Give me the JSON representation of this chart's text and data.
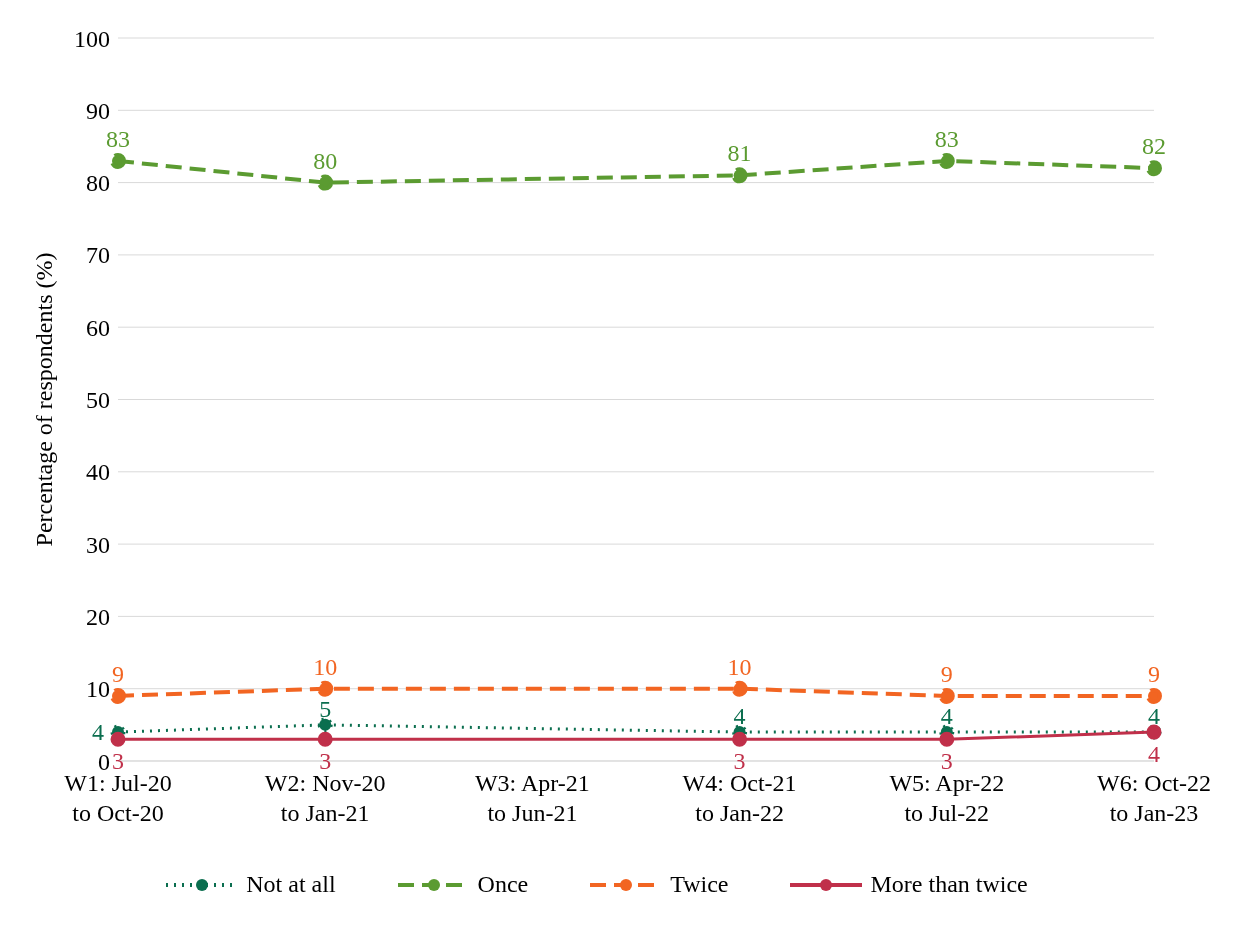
{
  "chart_data": {
    "type": "line",
    "ylabel": "Percentage of respondents (%)",
    "categories": [
      "W1: Jul-20 to Oct-20",
      "W2: Nov-20 to Jan-21",
      "W3: Apr-21 to Jun-21",
      "W4: Oct-21 to Jan-22",
      "W5: Apr-22 to Jul-22",
      "W6: Oct-22 to Jan-23"
    ],
    "series": [
      {
        "name": "Not at all",
        "color": "#0b6e4f",
        "line_style": "dotted",
        "values": [
          4,
          5,
          null,
          4,
          4,
          4
        ]
      },
      {
        "name": "Once",
        "color": "#5b9b31",
        "line_style": "dashed",
        "values": [
          83,
          80,
          null,
          81,
          83,
          82
        ]
      },
      {
        "name": "Twice",
        "color": "#f26522",
        "line_style": "dashed",
        "values": [
          9,
          10,
          null,
          10,
          9,
          9
        ]
      },
      {
        "name": "More than twice",
        "color": "#c0304a",
        "line_style": "solid",
        "values": [
          3,
          3,
          null,
          3,
          3,
          4
        ]
      }
    ],
    "ylim": [
      0,
      100
    ],
    "yticks": [
      0,
      10,
      20,
      30,
      40,
      50,
      60,
      70,
      80,
      90,
      100
    ],
    "grid": "y",
    "legend": "bottom",
    "marker": "circle",
    "data_labels": true
  }
}
